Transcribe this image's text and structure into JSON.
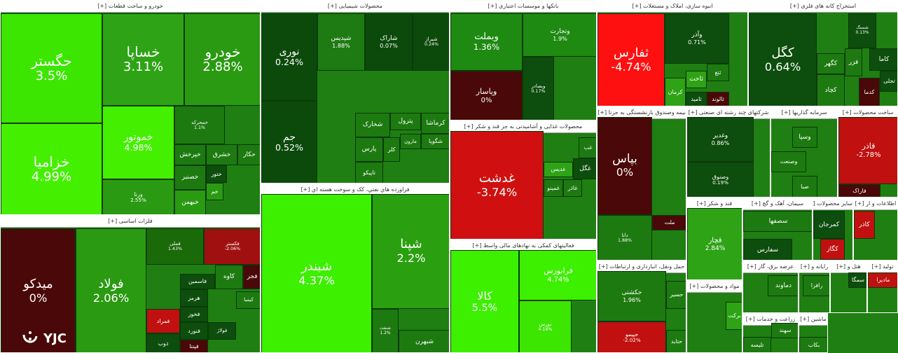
{
  "sectors": [
    {
      "title": "خودرو و ساخت قطعات [+]",
      "tiles": [
        {
          "name": "حگستر",
          "change": "3.5%",
          "color": "#3ce600"
        },
        {
          "name": "خزامیا",
          "change": "4.99%",
          "color": "#44f000"
        },
        {
          "name": "خساپا",
          "change": "3.11%",
          "color": "#2ea316"
        },
        {
          "name": "خودرو",
          "change": "2.88%",
          "color": "#2a9a12"
        },
        {
          "name": "خموتور",
          "change": "4.98%",
          "color": "#44f000"
        },
        {
          "name": "ورنا",
          "change": "2.55%",
          "color": "#2a9a12"
        },
        {
          "name": "خمحرکه",
          "change": "1.1%",
          "color": "#1d7a10"
        },
        {
          "name": "خپرخش",
          "color": "#1d7a10"
        },
        {
          "name": "خشرق",
          "color": "#1d7a10"
        },
        {
          "name": "حکار",
          "color": "#1d7a10"
        },
        {
          "name": "خصنبر",
          "color": "#1d7a10"
        },
        {
          "name": "خبهمن",
          "color": "#2a9a12"
        },
        {
          "name": "ختور",
          "color": "#0d4d0d"
        },
        {
          "name": "خم",
          "color": "#2a9a12"
        }
      ]
    },
    {
      "title": "فلزات اساسی [+]",
      "tiles": [
        {
          "name": "میدکو",
          "change": "0%",
          "color": "#4a0808"
        },
        {
          "name": "فولاد",
          "change": "2.06%",
          "color": "#2a9a12"
        },
        {
          "name": "فملی",
          "change": "1.43%",
          "color": "#1a6a0a"
        },
        {
          "name": "فکستر",
          "change": "-2.06%",
          "color": "#a01010"
        },
        {
          "name": "فاسمین",
          "color": "#0d4d0d"
        },
        {
          "name": "کاوه",
          "color": "#1d7a10"
        },
        {
          "name": "فجر",
          "color": "#4a0808"
        },
        {
          "name": "هرمز",
          "color": "#0d4d0d"
        },
        {
          "name": "فخوز",
          "color": "#0d4d0d"
        },
        {
          "name": "فنورد",
          "color": "#0d4d0d"
        },
        {
          "name": "فپنتا",
          "color": "#4a0808"
        },
        {
          "name": "فمراد",
          "color": "#c01010"
        },
        {
          "name": "ذوب",
          "color": "#0d4d0d"
        },
        {
          "name": "کیمیا",
          "color": "#1d7a10"
        },
        {
          "name": "فولاژ",
          "color": "#0d4d0d"
        }
      ]
    },
    {
      "title": "محصولات شیمیایی [+]",
      "tiles": [
        {
          "name": "نوری",
          "change": "0.24%",
          "color": "#0c4a0c"
        },
        {
          "name": "جم",
          "change": "0.52%",
          "color": "#0c4a0c"
        },
        {
          "name": "شپدیس",
          "change": "1.88%",
          "color": "#1e7a12"
        },
        {
          "name": "شاراک",
          "change": "0.07%",
          "color": "#0c4a0c"
        },
        {
          "name": "شیراز",
          "change": "0.24%",
          "color": "#0c4a0c"
        },
        {
          "name": "شخارک",
          "color": "#1d7a10"
        },
        {
          "name": "پترول",
          "color": "#1d7a10"
        },
        {
          "name": "کرماشا",
          "color": "#1d7a10"
        },
        {
          "name": "شگویا",
          "color": "#1d7a10"
        },
        {
          "name": "مارون",
          "color": "#1d7a10"
        },
        {
          "name": "پارس",
          "color": "#1d7a10"
        },
        {
          "name": "کلر",
          "color": "#1d7a10"
        },
        {
          "name": "تاپیکو",
          "color": "#1d7a10"
        }
      ]
    },
    {
      "title": "فراورده هاي نفتي، كک و سوخت هسته اي [+]",
      "tiles": [
        {
          "name": "شبندر",
          "change": "4.37%",
          "color": "#3cf000"
        },
        {
          "name": "شپنا",
          "change": "2.2%",
          "color": "#2aa010"
        },
        {
          "name": "شبهرن",
          "color": "#1d7a10"
        },
        {
          "name": "شنفت",
          "change": "1.2%",
          "color": "#1d7a10"
        }
      ]
    },
    {
      "title": "بانکها و موسسات اعتباری [+]",
      "tiles": [
        {
          "name": "وبملت",
          "change": "1.36%",
          "color": "#1e8a12"
        },
        {
          "name": "وپاسار",
          "change": "0%",
          "color": "#4a0808"
        },
        {
          "name": "وتجارت",
          "change": "1.9%",
          "color": "#1e8a12"
        },
        {
          "name": "وبصادر",
          "change": "0.17%",
          "color": "#0d4d0d"
        }
      ]
    },
    {
      "title": "محصولات غذایی و آشامیدنی به جز قند و شکر [+]",
      "tiles": [
        {
          "name": "غدشت",
          "change": "-3.74%",
          "color": "#d01010"
        },
        {
          "name": "غگل",
          "color": "#0d4d0d"
        },
        {
          "name": "غدیس",
          "color": "#2ea316"
        },
        {
          "name": "غمینو",
          "color": "#1d7a10"
        },
        {
          "name": "غاذر",
          "color": "#1d7a10"
        },
        {
          "name": "غب",
          "color": "#1d7a10"
        }
      ]
    },
    {
      "title": "فعالیتهای کمکی به نهادهای مالی واسط [+]",
      "tiles": [
        {
          "name": "کالا",
          "change": "5.5%",
          "color": "#3cf000"
        },
        {
          "name": "فرابورس",
          "change": "4.74%",
          "color": "#3cf000"
        },
        {
          "name": "نورس",
          "change": "4.16%",
          "color": "#3ce600"
        }
      ]
    },
    {
      "title": "انبوه سازی، املاک و مستغلات [+]",
      "tiles": [
        {
          "name": "ثفارس",
          "change": "-4.74%",
          "color": "#ff1010"
        },
        {
          "name": "وآذر",
          "change": "0.71%",
          "color": "#0d4d0d"
        },
        {
          "name": "ثاخت",
          "color": "#2ea316"
        },
        {
          "name": "کرمان",
          "color": "#2ea316"
        },
        {
          "name": "ثتغ",
          "color": "#1d7a10"
        },
        {
          "name": "ثامید",
          "color": "#0d4d0d"
        },
        {
          "name": "ثالوند",
          "color": "#4a0808"
        }
      ]
    },
    {
      "title": "بیمه وصندوق بازنشستگی به جزتا [+]",
      "tiles": [
        {
          "name": "بپاس",
          "change": "0%",
          "color": "#4a0808"
        },
        {
          "name": "دانا",
          "change": "1.88%",
          "color": "#1d7a10"
        },
        {
          "name": "ملت",
          "color": "#4a0808"
        }
      ]
    },
    {
      "title": "استخراج کانه های فلزی [+]",
      "tiles": [
        {
          "name": "کگل",
          "change": "0.64%",
          "color": "#0d4d0d"
        },
        {
          "name": "شسنگ",
          "change": "0.13%",
          "color": "#0d4d0d"
        },
        {
          "name": "کگهر",
          "color": "#1d7a10"
        },
        {
          "name": "کچاد",
          "color": "#1d7a10"
        },
        {
          "name": "فزر",
          "color": "#1d7a10"
        },
        {
          "name": "کاما",
          "color": "#0d4d0d"
        },
        {
          "name": "کدما",
          "color": "#4a0808"
        },
        {
          "name": "تجلی",
          "color": "#0d4d0d"
        }
      ]
    },
    {
      "title": "شرکتهای چند رشته ای صنعتی [+]",
      "tiles": [
        {
          "name": "وغدیر",
          "change": "0.86%",
          "color": "#0d4d0d"
        },
        {
          "name": "وصنوق",
          "change": "0.19%",
          "color": "#0d4d0d"
        }
      ]
    },
    {
      "title": "سرمایه گذاریها [+]",
      "tiles": [
        {
          "name": "وسپا",
          "color": "#1d7a10"
        },
        {
          "name": "وصنعت",
          "color": "#1d7a10"
        },
        {
          "name": "صبا",
          "color": "#1d7a10"
        }
      ]
    },
    {
      "title": "ساخت محصولات [+]",
      "tiles": [
        {
          "name": "قاذر",
          "change": "-2.78%",
          "color": "#c01010"
        },
        {
          "name": "فاراک",
          "color": "#4a0808"
        }
      ]
    },
    {
      "title": "قند و شکر [+]",
      "tiles": [
        {
          "name": "قچار",
          "change": "2.84%",
          "color": "#2ea316"
        }
      ]
    },
    {
      "title": "حمل ونقل، انبارداری و ارتباطات [+]",
      "tiles": [
        {
          "name": "حکشتی",
          "change": "1.96%",
          "color": "#1d7a10"
        },
        {
          "name": "حپیمو",
          "change": "-2.02%",
          "color": "#c01010"
        },
        {
          "name": "حسیر",
          "color": "#1d7a10"
        },
        {
          "name": "حتاید",
          "color": "#1d7a10"
        }
      ]
    },
    {
      "title": "مواد و محصولات [+]",
      "tiles": [
        {
          "name": "برکت",
          "color": "#2ea316"
        }
      ]
    },
    {
      "title": "سیمان، آهک و گچ [+]",
      "tiles": [
        {
          "name": "سصفها",
          "color": "#1d7a10"
        },
        {
          "name": "سفارس",
          "color": "#0d4d0d"
        }
      ]
    },
    {
      "title": "سایر محصولات [+]",
      "tiles": [
        {
          "name": "کمرجان",
          "color": "#0d4d0d"
        },
        {
          "name": "کگاز",
          "color": "#c01010"
        }
      ]
    },
    {
      "title": "اطلاعات و ار [+]",
      "tiles": [
        {
          "name": "کاذر",
          "color": "#c01010"
        }
      ]
    },
    {
      "title": "عرضه برق، گاز [+]",
      "tiles": [
        {
          "name": "دماوند",
          "color": "#1d7a10"
        }
      ]
    },
    {
      "title": "رایانه و [+]",
      "tiles": [
        {
          "name": "رافزا",
          "color": "#1d7a10"
        }
      ]
    },
    {
      "title": "هتل و [+]",
      "tiles": [
        {
          "name": "سمگا",
          "color": "#0d4d0d"
        }
      ]
    },
    {
      "title": "تولید [+]",
      "tiles": [
        {
          "name": "مادیرا",
          "color": "#c01010"
        }
      ]
    },
    {
      "title": "زراعت و خدمات [+]",
      "tiles": [
        {
          "name": "تلیسه",
          "color": "#1d7a10"
        },
        {
          "name": "سهند",
          "color": "#1d7a10"
        }
      ]
    },
    {
      "title": "ماشین [+]",
      "tiles": [
        {
          "name": "بکاب",
          "color": "#1d7a10"
        }
      ]
    }
  ],
  "watermark": "YJC"
}
